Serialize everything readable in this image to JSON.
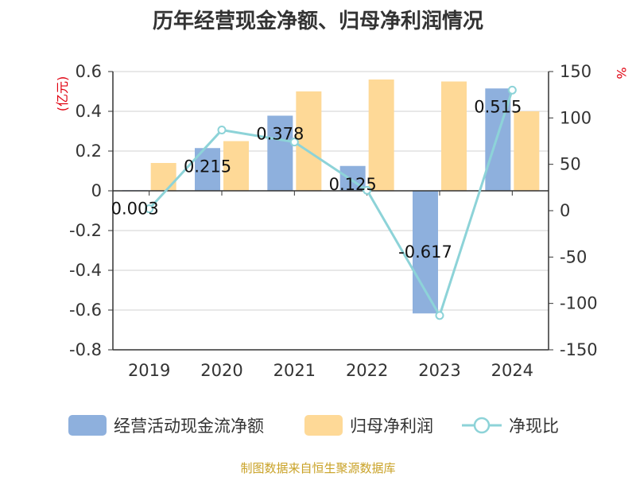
{
  "title": "历年经营现金净额、归母净利润情况",
  "source": "制图数据来自恒生聚源数据库",
  "colors": {
    "cashflow": "#8eb0dd",
    "netprofit": "#fed997",
    "ratio": "#8dd3d8",
    "unit": "#e0000f",
    "source": "#c9a227"
  },
  "chart_data": {
    "type": "bar",
    "categories": [
      "2019",
      "2020",
      "2021",
      "2022",
      "2023",
      "2024"
    ],
    "series": [
      {
        "name": "经营活动现金流净额",
        "type": "bar",
        "axis": "left",
        "values": [
          0.003,
          0.215,
          0.378,
          0.125,
          -0.617,
          0.515
        ],
        "labels": [
          "0.003",
          "0.215",
          "0.378",
          "0.125",
          "-0.617",
          "0.515"
        ]
      },
      {
        "name": "归母净利润",
        "type": "bar",
        "axis": "left",
        "values": [
          0.14,
          0.25,
          0.5,
          0.56,
          0.55,
          0.4
        ]
      },
      {
        "name": "净现比",
        "type": "line",
        "axis": "right",
        "values": [
          2,
          87,
          74,
          22,
          -113,
          130
        ]
      }
    ],
    "left_axis": {
      "unit": "(亿元)",
      "ticks": [
        "0.6",
        "0.4",
        "0.2",
        "0",
        "-0.2",
        "-0.4",
        "-0.6",
        "-0.8"
      ],
      "ylim": [
        -0.8,
        0.6
      ]
    },
    "right_axis": {
      "unit": "%",
      "ticks": [
        "150",
        "100",
        "50",
        "0",
        "-50",
        "-100",
        "-150"
      ],
      "ylim": [
        -150,
        150
      ]
    },
    "legend_position": "bottom",
    "grid": true
  }
}
